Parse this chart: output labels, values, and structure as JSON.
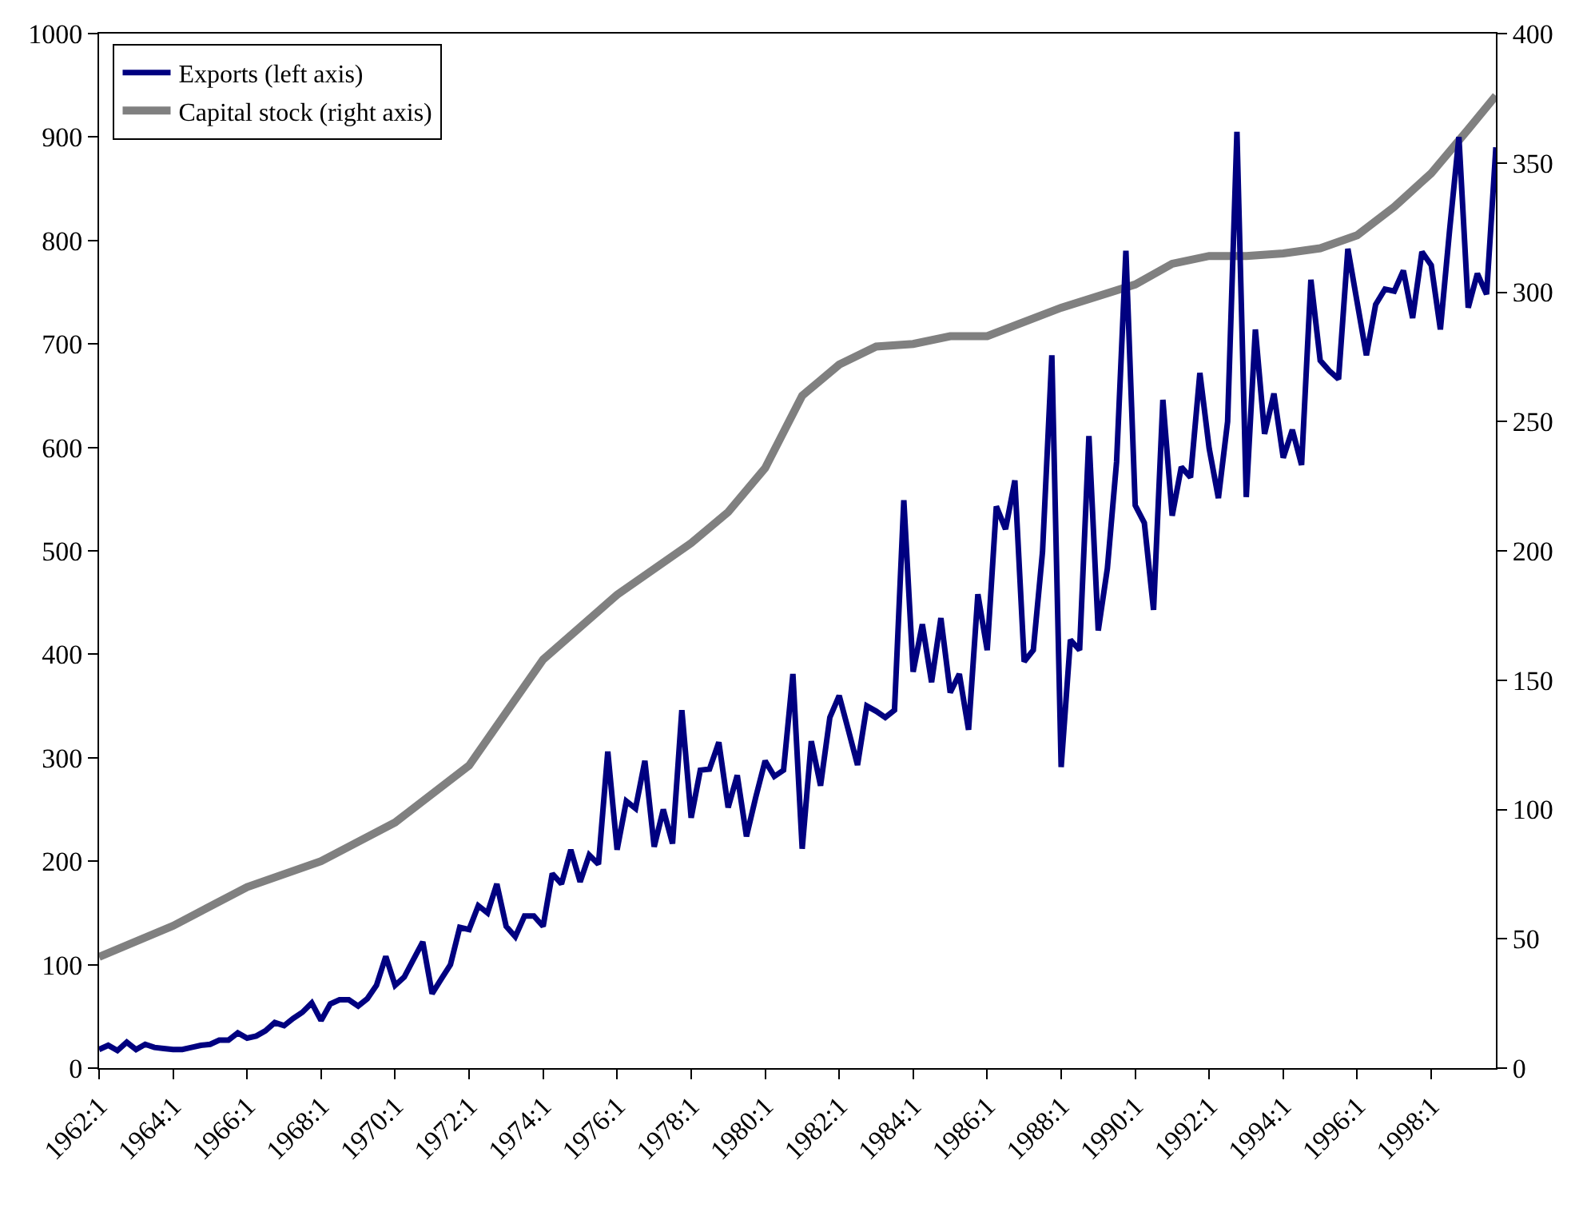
{
  "chart_data": {
    "type": "line",
    "x": [
      "1962-01",
      "1962-04",
      "1962-07",
      "1962-10",
      "1963-01",
      "1963-04",
      "1963-07",
      "1963-10",
      "1964-01",
      "1964-04",
      "1964-07",
      "1964-10",
      "1965-01",
      "1965-04",
      "1965-07",
      "1965-10",
      "1966-01",
      "1966-04",
      "1966-07",
      "1966-10",
      "1967-01",
      "1967-04",
      "1967-07",
      "1967-10",
      "1968-01",
      "1968-04",
      "1968-07",
      "1968-10",
      "1969-01",
      "1969-04",
      "1969-07",
      "1969-10",
      "1970-01",
      "1970-04",
      "1970-07",
      "1970-10",
      "1971-01",
      "1971-04",
      "1971-07",
      "1971-10",
      "1972-01",
      "1972-04",
      "1972-07",
      "1972-10",
      "1973-01",
      "1973-04",
      "1973-07",
      "1973-10",
      "1974-01",
      "1974-04",
      "1974-07",
      "1974-10",
      "1975-01",
      "1975-04",
      "1975-07",
      "1975-10",
      "1976-01",
      "1976-04",
      "1976-07",
      "1976-10",
      "1977-01",
      "1977-04",
      "1977-07",
      "1977-10",
      "1978-01",
      "1978-04",
      "1978-07",
      "1978-10",
      "1979-01",
      "1979-04",
      "1979-07",
      "1979-10",
      "1980-01",
      "1980-04",
      "1980-07",
      "1980-10",
      "1981-01",
      "1981-04",
      "1981-07",
      "1981-10",
      "1982-01",
      "1982-04",
      "1982-07",
      "1982-10",
      "1983-01",
      "1983-04",
      "1983-07",
      "1983-10",
      "1984-01",
      "1984-04",
      "1984-07",
      "1984-10",
      "1985-01",
      "1985-04",
      "1985-07",
      "1985-10",
      "1986-01",
      "1986-04",
      "1986-07",
      "1986-10",
      "1987-01",
      "1987-04",
      "1987-07",
      "1987-10",
      "1988-01",
      "1988-04",
      "1988-07",
      "1988-10",
      "1989-01",
      "1989-04",
      "1989-07",
      "1989-10",
      "1990-01",
      "1990-04",
      "1990-07",
      "1990-10",
      "1991-01",
      "1991-04",
      "1991-07",
      "1991-10",
      "1992-01",
      "1992-04",
      "1992-07",
      "1992-10",
      "1993-01",
      "1993-04",
      "1993-07",
      "1993-10",
      "1994-01",
      "1994-04",
      "1994-07",
      "1994-10",
      "1995-01",
      "1995-04",
      "1995-07",
      "1995-10",
      "1996-01",
      "1996-04",
      "1996-07",
      "1996-10",
      "1997-01",
      "1997-04",
      "1997-07",
      "1997-10",
      "1998-01",
      "1998-04",
      "1998-07",
      "1998-10",
      "1999-01",
      "1999-04",
      "1999-07",
      "1999-10"
    ],
    "series": [
      {
        "name": "Exports (left axis)",
        "color": "#000080",
        "values": [
          18,
          22,
          17,
          25,
          18,
          23,
          20,
          19,
          18,
          18,
          20,
          22,
          23,
          27,
          27,
          34,
          29,
          31,
          36,
          44,
          41,
          48,
          54,
          63,
          46,
          62,
          66,
          66,
          60,
          67,
          80,
          108,
          80,
          88,
          105,
          122,
          72,
          86,
          100,
          136,
          134,
          157,
          150,
          178,
          137,
          127,
          147,
          147,
          137,
          188,
          178,
          211,
          180,
          206,
          197,
          306,
          211,
          258,
          251,
          297,
          214,
          250,
          217,
          346,
          242,
          288,
          289,
          315,
          252,
          283,
          224,
          262,
          297,
          282,
          288,
          381,
          212,
          316,
          273,
          339,
          360,
          327,
          293,
          350,
          345,
          339,
          346,
          549,
          383,
          429,
          373,
          435,
          363,
          381,
          327,
          458,
          404,
          543,
          521,
          568,
          393,
          404,
          499,
          689,
          291,
          414,
          404,
          611,
          423,
          483,
          586,
          790,
          544,
          527,
          443,
          646,
          534,
          581,
          571,
          672,
          599,
          551,
          625,
          905,
          552,
          714,
          613,
          652,
          590,
          617,
          583,
          762,
          684,
          674,
          666,
          792,
          740,
          689,
          738,
          753,
          751,
          771,
          725,
          789,
          776,
          714,
          810,
          900,
          735,
          768,
          748,
          890
        ]
      },
      {
        "name": "Capital stock (right axis)",
        "color": "#808080",
        "axis": "y2",
        "x": [
          "1962-01",
          "1964-01",
          "1966-01",
          "1968-01",
          "1970-01",
          "1972-01",
          "1974-01",
          "1976-01",
          "1978-01",
          "1979-01",
          "1980-01",
          "1981-01",
          "1982-01",
          "1983-01",
          "1984-01",
          "1985-01",
          "1986-01",
          "1988-01",
          "1990-01",
          "1991-01",
          "1992-01",
          "1993-01",
          "1994-01",
          "1995-01",
          "1996-01",
          "1997-01",
          "1998-01",
          "1999-01",
          "1999-10"
        ],
        "values": [
          43,
          55,
          70,
          80,
          95,
          117,
          158,
          183,
          203,
          215,
          232,
          260,
          272,
          279,
          280,
          283,
          283,
          294,
          303,
          311,
          314,
          314,
          315,
          317,
          322,
          333,
          346,
          363,
          376
        ]
      }
    ],
    "xlim": [
      "1962-01",
      "1999-10"
    ],
    "xticks": [
      {
        "value": "1962-01",
        "label": "1962:1"
      },
      {
        "value": "1964-01",
        "label": "1964:1"
      },
      {
        "value": "1966-01",
        "label": "1966:1"
      },
      {
        "value": "1968-01",
        "label": "1968:1"
      },
      {
        "value": "1970-01",
        "label": "1970:1"
      },
      {
        "value": "1972-01",
        "label": "1972:1"
      },
      {
        "value": "1974-01",
        "label": "1974:1"
      },
      {
        "value": "1976-01",
        "label": "1976:1"
      },
      {
        "value": "1978-01",
        "label": "1978:1"
      },
      {
        "value": "1980-01",
        "label": "1980:1"
      },
      {
        "value": "1982-01",
        "label": "1982:1"
      },
      {
        "value": "1984-01",
        "label": "1984:1"
      },
      {
        "value": "1986-01",
        "label": "1986:1"
      },
      {
        "value": "1988-01",
        "label": "1988:1"
      },
      {
        "value": "1990-01",
        "label": "1990:1"
      },
      {
        "value": "1992-01",
        "label": "1992:1"
      },
      {
        "value": "1994-01",
        "label": "1994:1"
      },
      {
        "value": "1996-01",
        "label": "1996:1"
      },
      {
        "value": "1998-01",
        "label": "1998:1"
      }
    ],
    "ylim": [
      0,
      1000
    ],
    "yticks": [
      0,
      100,
      200,
      300,
      400,
      500,
      600,
      700,
      800,
      900,
      1000
    ],
    "y2lim": [
      0,
      400
    ],
    "y2ticks": [
      0,
      50,
      100,
      150,
      200,
      250,
      300,
      350,
      400
    ],
    "legend": "top left",
    "marker": "none",
    "line_style": "solid"
  }
}
